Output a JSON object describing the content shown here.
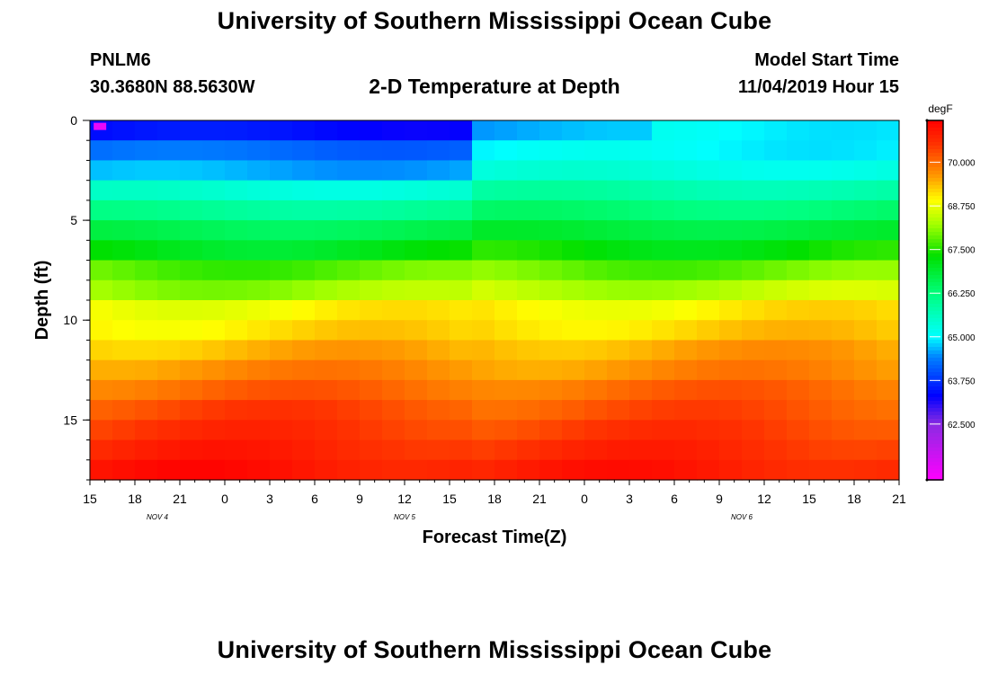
{
  "header": {
    "title": "University of Southern Mississippi Ocean Cube",
    "station_id": "PNLM6",
    "coordinates": "30.3680N 88.5630W",
    "model_start_label": "Model Start Time",
    "model_start_value": "11/04/2019 Hour 15"
  },
  "footer": {
    "title": "University of Southern Mississippi Ocean Cube"
  },
  "chart_data": {
    "type": "heatmap",
    "title": "2-D Temperature at Depth",
    "xlabel": "Forecast Time(Z)",
    "ylabel": "Depth (ft)",
    "x_tick_labels": [
      "15",
      "18",
      "21",
      "0",
      "3",
      "6",
      "9",
      "12",
      "15",
      "18",
      "21",
      "0",
      "3",
      "6",
      "9",
      "12",
      "15",
      "18",
      "21"
    ],
    "x_range_hours": [
      0,
      54
    ],
    "date_labels": [
      {
        "label": "NOV 4",
        "hour": 4.5
      },
      {
        "label": "NOV 5",
        "hour": 21
      },
      {
        "label": "NOV 6",
        "hour": 43.5
      }
    ],
    "y_tick_labels": [
      "0",
      "5",
      "10",
      "15"
    ],
    "y_ticks": [
      0,
      5,
      10,
      15
    ],
    "ylim": [
      0,
      18
    ],
    "colorbar": {
      "unit": "degF",
      "min": 60.9,
      "max": 71.2,
      "tick_values": [
        62.5,
        63.75,
        65.0,
        66.25,
        67.5,
        68.75,
        70.0
      ],
      "tick_labels": [
        "62.500",
        "63.750",
        "65.000",
        "66.250",
        "67.500",
        "68.750",
        "70.000"
      ],
      "stops": [
        {
          "v": 60.9,
          "c": "#ff00ff"
        },
        {
          "v": 62.5,
          "c": "#8a2be2"
        },
        {
          "v": 63.3,
          "c": "#0000ff"
        },
        {
          "v": 64.4,
          "c": "#0080ff"
        },
        {
          "v": 65.0,
          "c": "#00ffff"
        },
        {
          "v": 66.2,
          "c": "#00ff80"
        },
        {
          "v": 67.3,
          "c": "#00e000"
        },
        {
          "v": 68.2,
          "c": "#a0ff00"
        },
        {
          "v": 68.9,
          "c": "#ffff00"
        },
        {
          "v": 69.6,
          "c": "#ff9900"
        },
        {
          "v": 70.5,
          "c": "#ff3300"
        },
        {
          "v": 71.2,
          "c": "#ff0000"
        }
      ]
    },
    "depth_bins_ft": [
      0,
      1,
      2,
      3,
      4,
      5,
      6,
      7,
      8,
      9,
      10,
      11,
      12,
      13,
      14,
      15,
      16,
      17,
      18
    ],
    "profile_before_front_degF": [
      63.4,
      64.2,
      64.6,
      65.4,
      66.0,
      66.6,
      67.1,
      67.8,
      68.2,
      68.9,
      69.1,
      69.4,
      69.7,
      70.0,
      70.3,
      70.5,
      70.7,
      70.9
    ],
    "profile_after_front_degF": [
      64.6,
      65.0,
      65.3,
      65.8,
      66.3,
      66.8,
      67.3,
      67.9,
      68.4,
      69.0,
      69.2,
      69.5,
      69.7,
      70.0,
      70.2,
      70.4,
      70.6,
      70.8
    ],
    "front_hour": 25,
    "surface_cold_spot": {
      "hour": 0.5,
      "depth_ft": 0.3,
      "value_degF": 61.2
    }
  }
}
